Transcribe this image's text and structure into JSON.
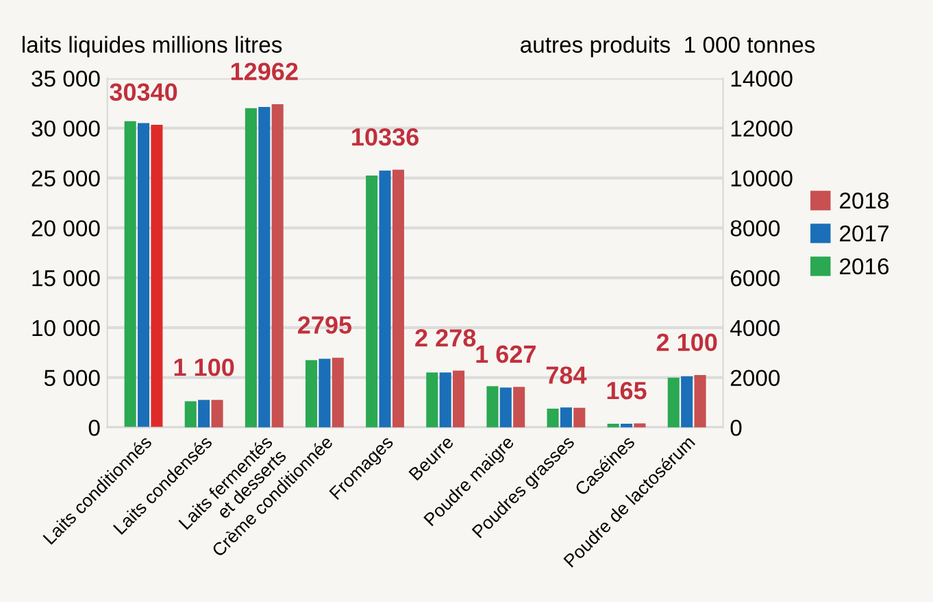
{
  "chart_data": {
    "type": "bar",
    "ylabel": "laits liquides millions litres",
    "y2label": "autres produits  1 000 tonnes",
    "categories": [
      "Laits conditionnés",
      "Laits condensés",
      "Laits fermentés\net desserts",
      "Crème conditionnée",
      "Fromages",
      "Beurre",
      "Poudre maigre",
      "Poudres grasses",
      "Caséines",
      "Poudre de lactosérum"
    ],
    "series": [
      {
        "color": "#2aa852",
        "axis": "y",
        "values": [
          30700,
          null,
          null,
          null,
          null,
          null,
          null,
          null,
          null,
          null
        ]
      },
      {
        "color": "#1a6fb8",
        "axis": "y",
        "values": [
          30500,
          null,
          null,
          null,
          null,
          null,
          null,
          null,
          null,
          null
        ]
      },
      {
        "color": "#e02a2a",
        "axis": "y",
        "values": [
          30340,
          null,
          null,
          null,
          null,
          null,
          null,
          null,
          null,
          null
        ],
        "value_labels": [
          "30340",
          null,
          null,
          null,
          null,
          null,
          null,
          null,
          null,
          null
        ]
      },
      {
        "name": "2016",
        "color": "#2aa852",
        "axis": "y2",
        "values": [
          null,
          1050,
          12800,
          2700,
          10100,
          2200,
          1650,
          750,
          150,
          2000
        ]
      },
      {
        "name": "2017",
        "color": "#1a6fb8",
        "axis": "y2",
        "values": [
          null,
          1100,
          12850,
          2750,
          10300,
          2200,
          1600,
          800,
          150,
          2050
        ]
      },
      {
        "name": "2018",
        "color": "#c85050",
        "axis": "y2",
        "values": [
          null,
          1100,
          12962,
          2795,
          10336,
          2278,
          1627,
          784,
          165,
          2100
        ],
        "value_labels": [
          null,
          "1 100",
          "12962",
          "2795",
          "10336",
          "2 278",
          "1 627",
          "784",
          "165",
          "2 100"
        ]
      }
    ],
    "ylim": [
      0,
      35000
    ],
    "yticks": [
      {
        "value": 0,
        "label": "0"
      },
      {
        "value": 5000,
        "label": "5 000"
      },
      {
        "value": 10000,
        "label": "10 000"
      },
      {
        "value": 15000,
        "label": "15 000"
      },
      {
        "value": 20000,
        "label": "20 000"
      },
      {
        "value": 25000,
        "label": "25 000"
      },
      {
        "value": 30000,
        "label": "30 000"
      },
      {
        "value": 35000,
        "label": "35 000"
      }
    ],
    "y2lim": [
      0,
      14000
    ],
    "y2ticks": [
      0,
      2000,
      4000,
      6000,
      8000,
      10000,
      12000,
      14000
    ],
    "grid": "y",
    "legend": "right"
  }
}
